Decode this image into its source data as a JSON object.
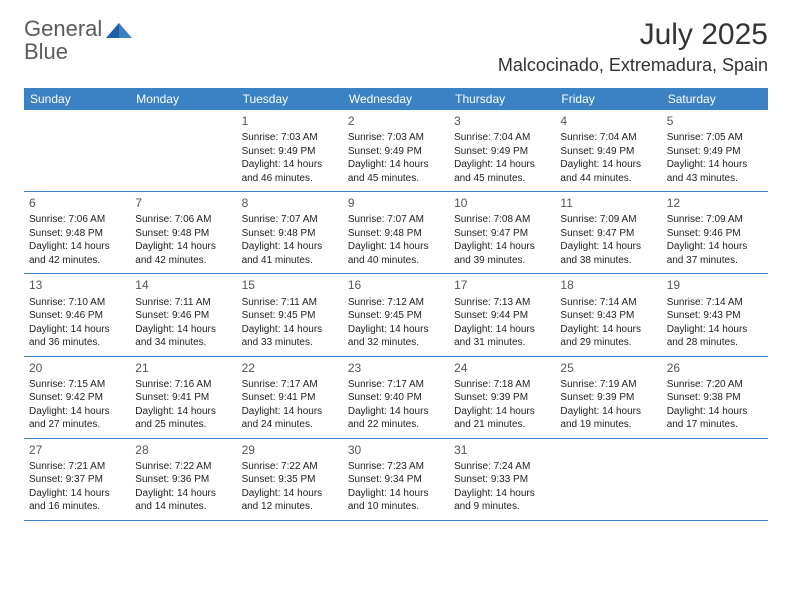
{
  "brand": {
    "word1": "General",
    "word2": "Blue"
  },
  "title": "July 2025",
  "location": "Malcocinado, Extremadura, Spain",
  "colors": {
    "header_bg": "#3b82c4",
    "header_text": "#ffffff",
    "divider": "#3b82c4",
    "body_text": "#222222",
    "daynum_text": "#555555",
    "logo_gray": "#5a5a5a",
    "logo_blue": "#3b82c4",
    "page_bg": "#ffffff"
  },
  "dow": [
    "Sunday",
    "Monday",
    "Tuesday",
    "Wednesday",
    "Thursday",
    "Friday",
    "Saturday"
  ],
  "weeks": [
    [
      null,
      null,
      {
        "n": "1",
        "sr": "7:03 AM",
        "ss": "9:49 PM",
        "dl": "14 hours and 46 minutes."
      },
      {
        "n": "2",
        "sr": "7:03 AM",
        "ss": "9:49 PM",
        "dl": "14 hours and 45 minutes."
      },
      {
        "n": "3",
        "sr": "7:04 AM",
        "ss": "9:49 PM",
        "dl": "14 hours and 45 minutes."
      },
      {
        "n": "4",
        "sr": "7:04 AM",
        "ss": "9:49 PM",
        "dl": "14 hours and 44 minutes."
      },
      {
        "n": "5",
        "sr": "7:05 AM",
        "ss": "9:49 PM",
        "dl": "14 hours and 43 minutes."
      }
    ],
    [
      {
        "n": "6",
        "sr": "7:06 AM",
        "ss": "9:48 PM",
        "dl": "14 hours and 42 minutes."
      },
      {
        "n": "7",
        "sr": "7:06 AM",
        "ss": "9:48 PM",
        "dl": "14 hours and 42 minutes."
      },
      {
        "n": "8",
        "sr": "7:07 AM",
        "ss": "9:48 PM",
        "dl": "14 hours and 41 minutes."
      },
      {
        "n": "9",
        "sr": "7:07 AM",
        "ss": "9:48 PM",
        "dl": "14 hours and 40 minutes."
      },
      {
        "n": "10",
        "sr": "7:08 AM",
        "ss": "9:47 PM",
        "dl": "14 hours and 39 minutes."
      },
      {
        "n": "11",
        "sr": "7:09 AM",
        "ss": "9:47 PM",
        "dl": "14 hours and 38 minutes."
      },
      {
        "n": "12",
        "sr": "7:09 AM",
        "ss": "9:46 PM",
        "dl": "14 hours and 37 minutes."
      }
    ],
    [
      {
        "n": "13",
        "sr": "7:10 AM",
        "ss": "9:46 PM",
        "dl": "14 hours and 36 minutes."
      },
      {
        "n": "14",
        "sr": "7:11 AM",
        "ss": "9:46 PM",
        "dl": "14 hours and 34 minutes."
      },
      {
        "n": "15",
        "sr": "7:11 AM",
        "ss": "9:45 PM",
        "dl": "14 hours and 33 minutes."
      },
      {
        "n": "16",
        "sr": "7:12 AM",
        "ss": "9:45 PM",
        "dl": "14 hours and 32 minutes."
      },
      {
        "n": "17",
        "sr": "7:13 AM",
        "ss": "9:44 PM",
        "dl": "14 hours and 31 minutes."
      },
      {
        "n": "18",
        "sr": "7:14 AM",
        "ss": "9:43 PM",
        "dl": "14 hours and 29 minutes."
      },
      {
        "n": "19",
        "sr": "7:14 AM",
        "ss": "9:43 PM",
        "dl": "14 hours and 28 minutes."
      }
    ],
    [
      {
        "n": "20",
        "sr": "7:15 AM",
        "ss": "9:42 PM",
        "dl": "14 hours and 27 minutes."
      },
      {
        "n": "21",
        "sr": "7:16 AM",
        "ss": "9:41 PM",
        "dl": "14 hours and 25 minutes."
      },
      {
        "n": "22",
        "sr": "7:17 AM",
        "ss": "9:41 PM",
        "dl": "14 hours and 24 minutes."
      },
      {
        "n": "23",
        "sr": "7:17 AM",
        "ss": "9:40 PM",
        "dl": "14 hours and 22 minutes."
      },
      {
        "n": "24",
        "sr": "7:18 AM",
        "ss": "9:39 PM",
        "dl": "14 hours and 21 minutes."
      },
      {
        "n": "25",
        "sr": "7:19 AM",
        "ss": "9:39 PM",
        "dl": "14 hours and 19 minutes."
      },
      {
        "n": "26",
        "sr": "7:20 AM",
        "ss": "9:38 PM",
        "dl": "14 hours and 17 minutes."
      }
    ],
    [
      {
        "n": "27",
        "sr": "7:21 AM",
        "ss": "9:37 PM",
        "dl": "14 hours and 16 minutes."
      },
      {
        "n": "28",
        "sr": "7:22 AM",
        "ss": "9:36 PM",
        "dl": "14 hours and 14 minutes."
      },
      {
        "n": "29",
        "sr": "7:22 AM",
        "ss": "9:35 PM",
        "dl": "14 hours and 12 minutes."
      },
      {
        "n": "30",
        "sr": "7:23 AM",
        "ss": "9:34 PM",
        "dl": "14 hours and 10 minutes."
      },
      {
        "n": "31",
        "sr": "7:24 AM",
        "ss": "9:33 PM",
        "dl": "14 hours and 9 minutes."
      },
      null,
      null
    ]
  ],
  "labels": {
    "sunrise": "Sunrise: ",
    "sunset": "Sunset: ",
    "daylight": "Daylight: "
  }
}
